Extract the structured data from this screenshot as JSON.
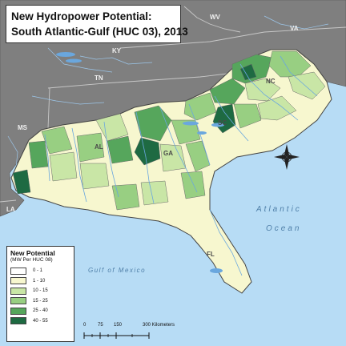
{
  "title": {
    "line1": "New Hydropower Potential:",
    "line2": "South Atlantic-Gulf (HUC 03), 2013"
  },
  "legend": {
    "title": "New Potential",
    "subtitle": "(MW Per HUC 08)",
    "classes": [
      {
        "label": "0 - 1",
        "color": "#ffffff"
      },
      {
        "label": "1 - 10",
        "color": "#f7f7cf"
      },
      {
        "label": "10 - 15",
        "color": "#c9e6a6"
      },
      {
        "label": "15 - 25",
        "color": "#98cf82"
      },
      {
        "label": "25 - 40",
        "color": "#56a65c"
      },
      {
        "label": "40 - 55",
        "color": "#1e6a42"
      }
    ]
  },
  "states": {
    "wv": "WV",
    "va": "VA",
    "ky": "KY",
    "tn": "TN",
    "nc": "NC",
    "sc": "SC",
    "ga": "GA",
    "al": "AL",
    "ms": "MS",
    "la": "LA",
    "fl": "FL"
  },
  "water_labels": {
    "atlantic_1": "Atlantic",
    "atlantic_2": "Ocean",
    "gulf": "Gulf of Mexico"
  },
  "scale": {
    "ticks": [
      "0",
      "75",
      "150",
      "300 Kilometers"
    ]
  },
  "colors": {
    "water": "#b7dcf5",
    "outside_land": "#7f7f7f",
    "region_base": "#f7f7cf",
    "rivers": "#6aa7de"
  }
}
